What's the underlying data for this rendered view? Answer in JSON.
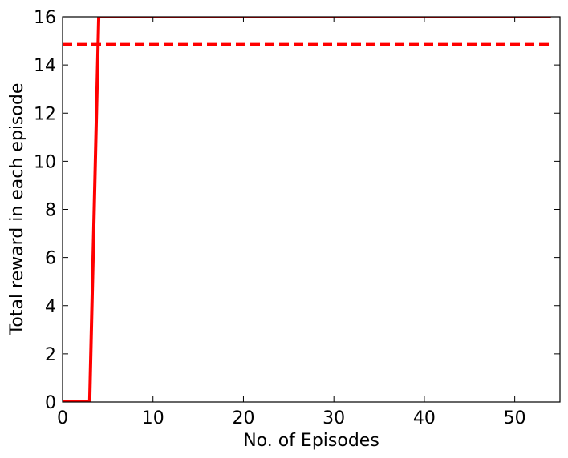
{
  "chart_data": {
    "type": "line",
    "title": "",
    "xlabel": "No. of Episodes",
    "ylabel": "Total reward in each episode",
    "xlim": [
      0,
      55
    ],
    "ylim": [
      0,
      16
    ],
    "xticks": [
      0,
      10,
      20,
      30,
      40,
      50
    ],
    "yticks": [
      0,
      2,
      4,
      6,
      8,
      10,
      12,
      14,
      16
    ],
    "grid": false,
    "legend": "none",
    "series": [
      {
        "style": "solid",
        "color": "#ff0000",
        "x": [
          0,
          1,
          2,
          3,
          4,
          5,
          6,
          7,
          8,
          9,
          10,
          11,
          12,
          13,
          14,
          15,
          16,
          17,
          18,
          19,
          20,
          21,
          22,
          23,
          24,
          25,
          26,
          27,
          28,
          29,
          30,
          31,
          32,
          33,
          34,
          35,
          36,
          37,
          38,
          39,
          40,
          41,
          42,
          43,
          44,
          45,
          46,
          47,
          48,
          49,
          50,
          51,
          52,
          53,
          54
        ],
        "y": [
          0,
          0,
          0,
          0,
          16,
          16,
          16,
          16,
          16,
          16,
          16,
          16,
          16,
          16,
          16,
          16,
          16,
          16,
          16,
          16,
          16,
          16,
          16,
          16,
          16,
          16,
          16,
          16,
          16,
          16,
          16,
          16,
          16,
          16,
          16,
          16,
          16,
          16,
          16,
          16,
          16,
          16,
          16,
          16,
          16,
          16,
          16,
          16,
          16,
          16,
          16,
          16,
          16,
          16,
          16
        ]
      }
    ],
    "reference_lines": [
      {
        "style": "dashed",
        "color": "#ff0000",
        "y": 14.85,
        "x_range": [
          0,
          54
        ]
      }
    ]
  }
}
